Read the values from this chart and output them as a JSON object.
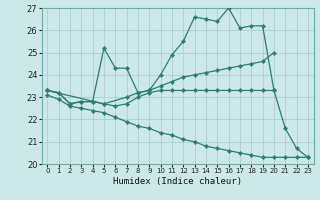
{
  "xlabel": "Humidex (Indice chaleur)",
  "xlim": [
    -0.5,
    23.5
  ],
  "ylim": [
    20,
    27
  ],
  "yticks": [
    20,
    21,
    22,
    23,
    24,
    25,
    26,
    27
  ],
  "xticks": [
    0,
    1,
    2,
    3,
    4,
    5,
    6,
    7,
    8,
    9,
    10,
    11,
    12,
    13,
    14,
    15,
    16,
    17,
    18,
    19,
    20,
    21,
    22,
    23
  ],
  "bg_color": "#cce8e8",
  "grid_color": "#aacfcf",
  "line_color": "#2e7d6e",
  "lines": [
    {
      "x": [
        0,
        1,
        2,
        3,
        4,
        5,
        6,
        7,
        8,
        9,
        10,
        11,
        12,
        13,
        14,
        15,
        16,
        17,
        18,
        19,
        20,
        21,
        22,
        23
      ],
      "y": [
        23.3,
        23.2,
        22.7,
        22.8,
        22.8,
        25.2,
        24.3,
        24.3,
        23.2,
        23.3,
        24.0,
        24.9,
        25.5,
        26.6,
        26.5,
        26.4,
        27.0,
        26.1,
        26.2,
        26.2,
        23.3,
        21.6,
        20.7,
        20.3
      ]
    },
    {
      "x": [
        0,
        5,
        7,
        8,
        9,
        10,
        11,
        12,
        13,
        14,
        15,
        16,
        17,
        18,
        19,
        20
      ],
      "y": [
        23.3,
        22.7,
        23.0,
        23.2,
        23.3,
        23.5,
        23.7,
        23.9,
        24.0,
        24.1,
        24.2,
        24.3,
        24.4,
        24.5,
        24.6,
        25.0
      ]
    },
    {
      "x": [
        0,
        1,
        2,
        3,
        4,
        5,
        6,
        7,
        8,
        9,
        10,
        11,
        12,
        13,
        14,
        15,
        16,
        17,
        18,
        19,
        20
      ],
      "y": [
        23.3,
        23.2,
        22.7,
        22.8,
        22.8,
        22.7,
        22.6,
        22.7,
        23.0,
        23.2,
        23.3,
        23.3,
        23.3,
        23.3,
        23.3,
        23.3,
        23.3,
        23.3,
        23.3,
        23.3,
        23.3
      ]
    },
    {
      "x": [
        0,
        1,
        2,
        3,
        4,
        5,
        6,
        7,
        8,
        9,
        10,
        11,
        12,
        13,
        14,
        15,
        16,
        17,
        18,
        19,
        20,
        21,
        22,
        23
      ],
      "y": [
        23.1,
        22.9,
        22.6,
        22.5,
        22.4,
        22.3,
        22.1,
        21.9,
        21.7,
        21.6,
        21.4,
        21.3,
        21.1,
        21.0,
        20.8,
        20.7,
        20.6,
        20.5,
        20.4,
        20.3,
        20.3,
        20.3,
        20.3,
        20.3
      ]
    }
  ]
}
